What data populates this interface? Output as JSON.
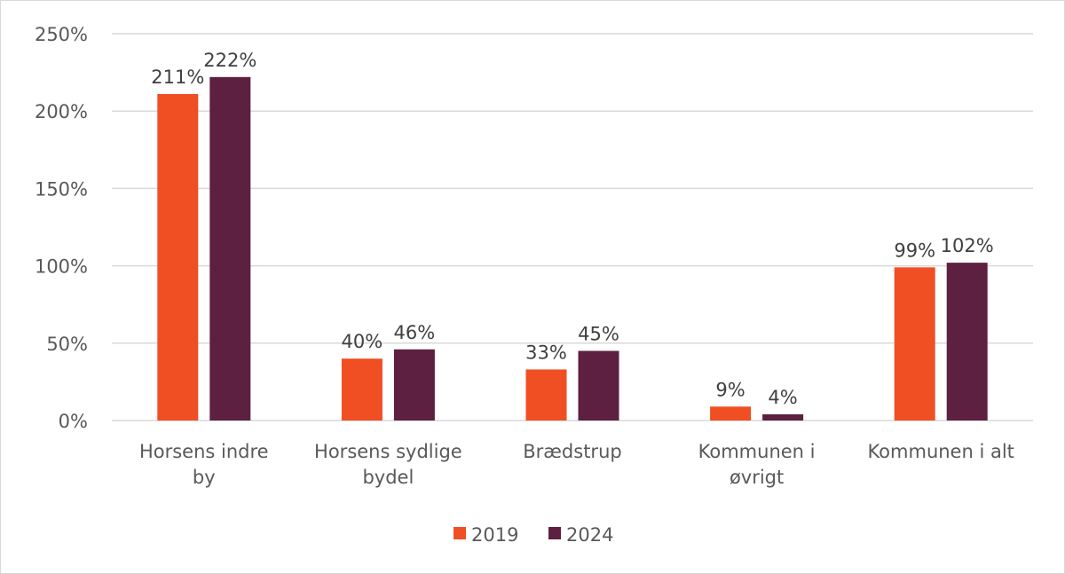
{
  "chart_data": {
    "type": "bar",
    "categories": [
      [
        "Horsens indre",
        "by"
      ],
      [
        "Horsens sydlige",
        "bydel"
      ],
      [
        "Brædstrup"
      ],
      [
        "Kommunen i",
        "øvrigt"
      ],
      [
        "Kommunen i alt"
      ]
    ],
    "series": [
      {
        "name": "2019",
        "color": "#F04E23",
        "values": [
          211,
          40,
          33,
          9,
          99
        ],
        "labels": [
          "211%",
          "40%",
          "33%",
          "9%",
          "99%"
        ]
      },
      {
        "name": "2024",
        "color": "#5E2040",
        "values": [
          222,
          46,
          45,
          4,
          102
        ],
        "labels": [
          "222%",
          "46%",
          "45%",
          "4%",
          "102%"
        ]
      }
    ],
    "ylim": [
      0,
      250
    ],
    "yticks": [
      "0%",
      "50%",
      "100%",
      "150%",
      "200%",
      "250%"
    ],
    "grid": true,
    "legend": "bottom",
    "title": "",
    "xlabel": "",
    "ylabel": ""
  }
}
